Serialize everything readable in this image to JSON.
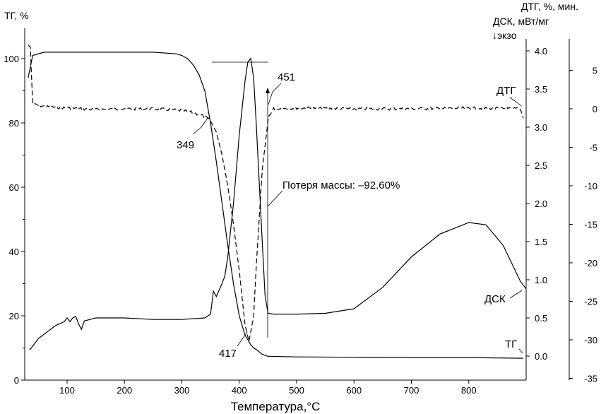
{
  "chart_data": {
    "type": "line",
    "xlabel": "Температура,°С",
    "x_ticks": [
      100,
      200,
      300,
      400,
      500,
      600,
      700,
      800
    ],
    "xlim": [
      30,
      900
    ],
    "axes": {
      "tg": {
        "title": "ТГ, %",
        "ylim": [
          0,
          110
        ],
        "ticks": [
          0,
          20,
          40,
          60,
          80,
          100
        ]
      },
      "dsc": {
        "title_line1": "ДСК, мВт/мг",
        "title_line2": "↓экзо",
        "ylim": [
          -0.1,
          4.4
        ],
        "ticks": [
          "0.0",
          "0.5",
          "1.0",
          "1.5",
          "2.0",
          "2.5",
          "3.0",
          "3.5",
          "4.0"
        ]
      },
      "dtg": {
        "title": "ДТГ, %, мин.",
        "ylim": [
          -35.3,
          9.8
        ],
        "ticks": [
          5,
          0,
          -5,
          -10,
          -15,
          -20,
          -25,
          -30,
          -35
        ]
      }
    },
    "series": [
      {
        "name": "ТГ",
        "axis": "tg",
        "x": [
          32,
          40,
          60,
          100,
          150,
          200,
          250,
          290,
          300,
          310,
          320,
          330,
          340,
          350,
          360,
          370,
          380,
          390,
          400,
          410,
          420,
          425,
          430,
          440,
          450,
          500,
          600,
          700,
          800,
          895
        ],
        "y": [
          94,
          101,
          102,
          102,
          102,
          102,
          102,
          101.5,
          101,
          100,
          98,
          95,
          90,
          80,
          68,
          55,
          42,
          30,
          20,
          14,
          11,
          10,
          9.5,
          8,
          7.4,
          7.2,
          7.1,
          7.0,
          7.0,
          6.8
        ]
      },
      {
        "name": "ДСК",
        "axis": "dsc",
        "x": [
          35,
          50,
          80,
          95,
          100,
          105,
          110,
          115,
          120,
          125,
          130,
          140,
          150,
          200,
          250,
          300,
          340,
          350,
          355,
          360,
          370,
          375,
          380,
          390,
          400,
          410,
          415,
          420,
          425,
          430,
          440,
          445,
          450,
          460,
          500,
          550,
          600,
          650,
          700,
          750,
          800,
          830,
          860,
          890,
          900
        ],
        "y": [
          0.08,
          0.23,
          0.4,
          0.45,
          0.5,
          0.45,
          0.5,
          0.52,
          0.42,
          0.35,
          0.46,
          0.48,
          0.5,
          0.5,
          0.48,
          0.48,
          0.5,
          0.55,
          0.85,
          0.78,
          0.95,
          1.05,
          1.3,
          2.0,
          2.9,
          3.6,
          3.85,
          3.9,
          3.65,
          3.0,
          1.5,
          0.8,
          0.56,
          0.55,
          0.55,
          0.56,
          0.62,
          0.9,
          1.3,
          1.6,
          1.75,
          1.72,
          1.45,
          0.98,
          0.88
        ]
      },
      {
        "name": "ДТГ",
        "axis": "dtg",
        "x": [
          32,
          36,
          40,
          60,
          100,
          150,
          200,
          250,
          300,
          320,
          340,
          349,
          360,
          370,
          380,
          390,
          400,
          410,
          417,
          425,
          430,
          440,
          451,
          460,
          500,
          600,
          700,
          800,
          890,
          895
        ],
        "y": [
          8.3,
          8.0,
          0.6,
          0.3,
          0.1,
          -0.1,
          0.0,
          0.0,
          -0.2,
          -0.5,
          -1.0,
          -1.5,
          -3.0,
          -6.0,
          -10.0,
          -15.0,
          -21.0,
          -28.0,
          -30.2,
          -27.0,
          -20.0,
          -8.0,
          -1.0,
          0.0,
          0.1,
          0.0,
          0.0,
          0.1,
          0.0,
          -1.2
        ]
      }
    ],
    "annotations": {
      "peak_349": "349",
      "peak_451": "451",
      "peak_417": "417",
      "mass_loss": "Потеря массы: –92.60%",
      "label_dtg": "ДТГ",
      "label_dsc": "ДСК",
      "label_tg": "ТГ"
    },
    "grid": false
  }
}
